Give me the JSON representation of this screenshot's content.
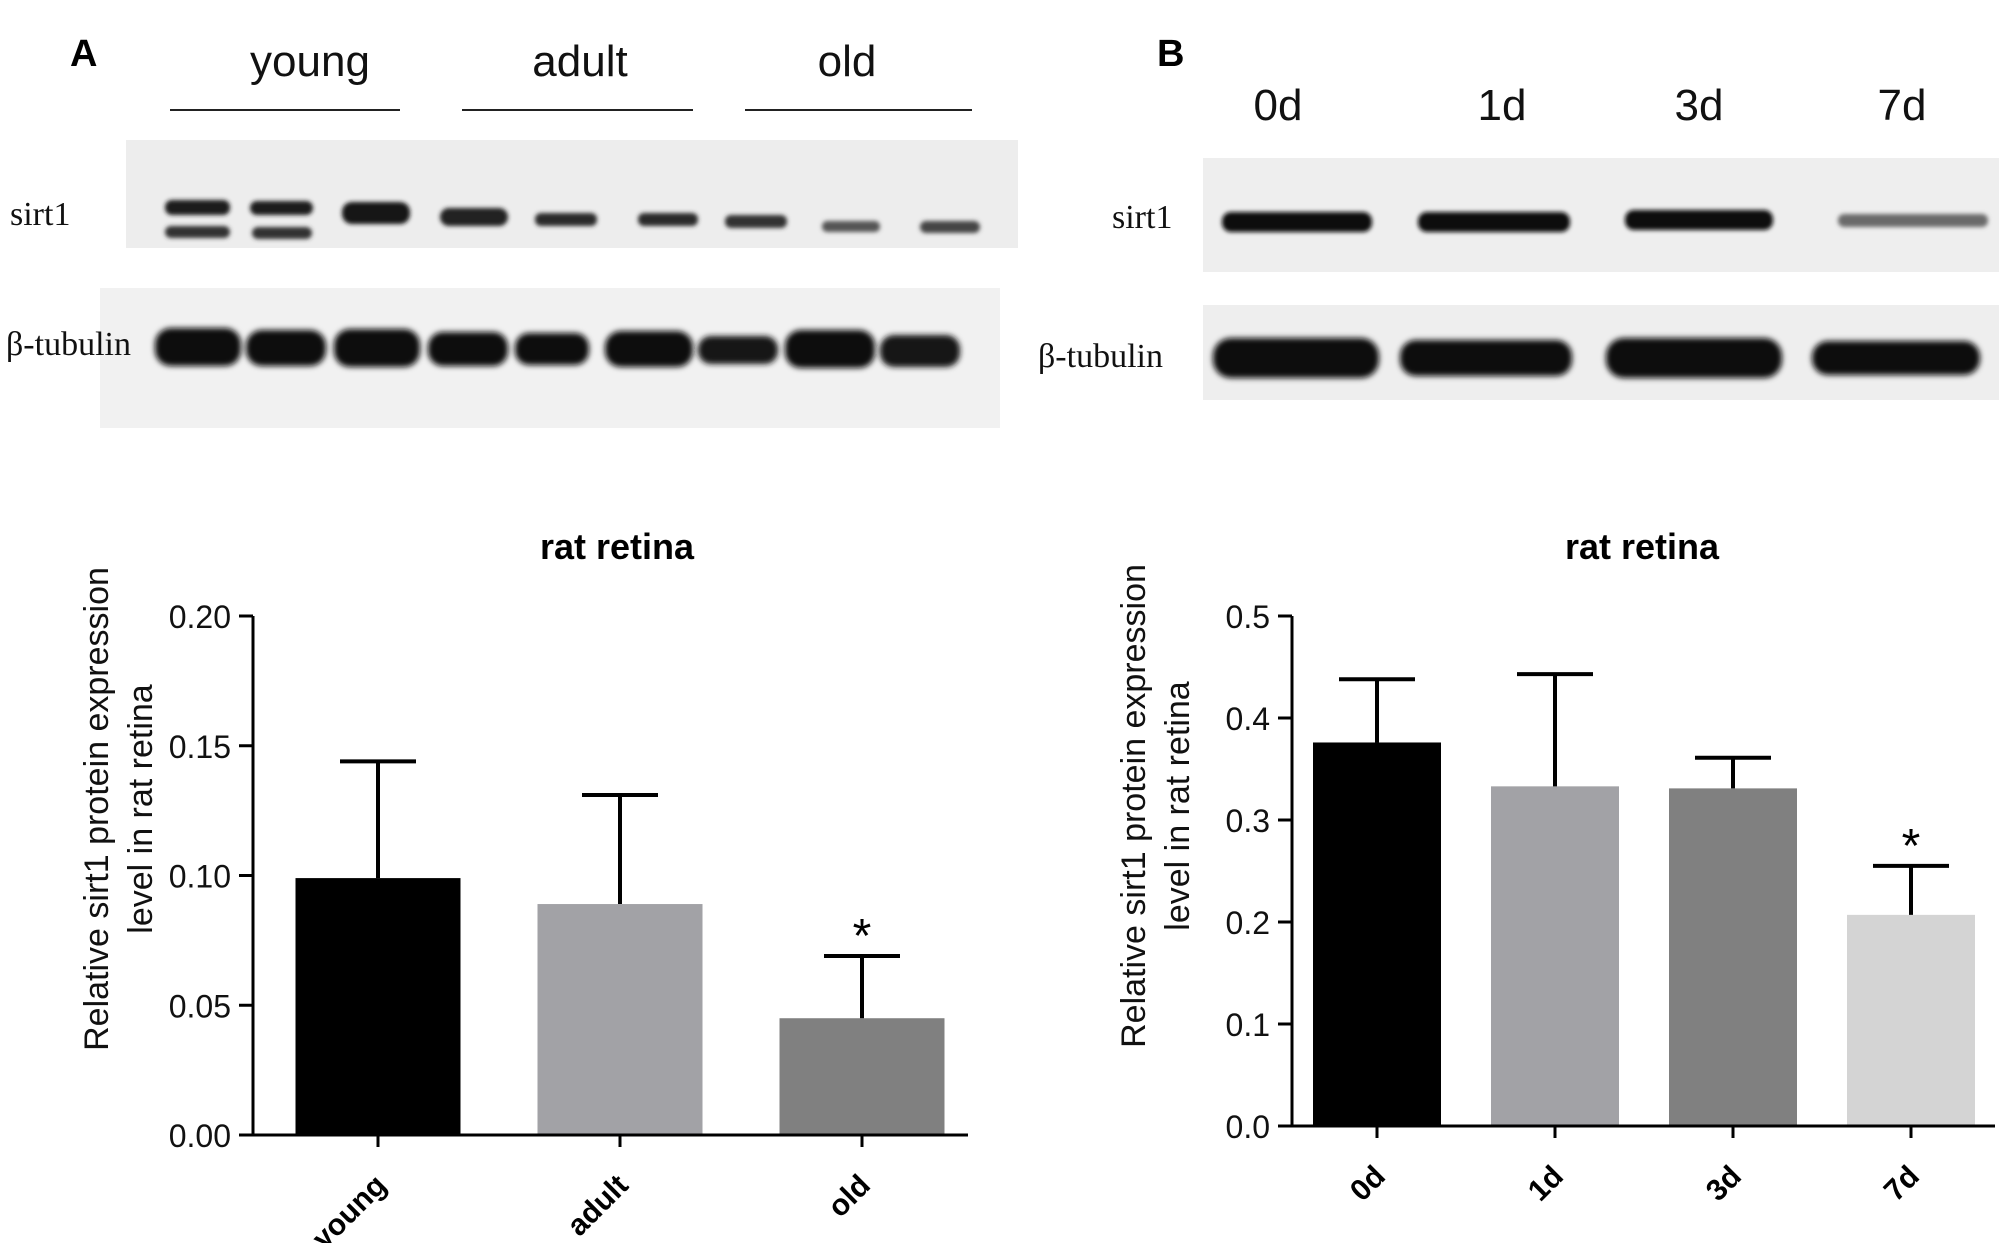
{
  "panels": [
    {
      "letter": "A",
      "blot": {
        "groups": [
          "young",
          "adult",
          "old"
        ],
        "rows": [
          "sirt1",
          "β-tubulin"
        ]
      }
    },
    {
      "letter": "B",
      "blot": {
        "lanes": [
          "0d",
          "1d",
          "3d",
          "7d"
        ],
        "rows": [
          "sirt1",
          "β-tubulin"
        ]
      }
    }
  ],
  "chart_data": [
    {
      "type": "bar",
      "title": "rat retina",
      "xlabel": "",
      "ylabel": "Relative sirt1 protein expression level in rat retina",
      "ylabel_lines": [
        "Relative sirt1 protein expression",
        "level in rat retina"
      ],
      "categories": [
        "young",
        "adult",
        "old"
      ],
      "values": [
        0.099,
        0.089,
        0.045
      ],
      "error_upper": [
        0.144,
        0.131,
        0.069
      ],
      "significance": [
        "",
        "",
        "*"
      ],
      "ylim": [
        0,
        0.2
      ],
      "yticks": [
        "0.00",
        "0.05",
        "0.10",
        "0.15",
        "0.20"
      ],
      "bar_colors": [
        "#000000",
        "#a2a2a6",
        "#808080"
      ],
      "grid": false
    },
    {
      "type": "bar",
      "title": "rat retina",
      "xlabel": "",
      "ylabel": "Relative sirt1 protein expression level in rat retina",
      "ylabel_lines": [
        "Relative sirt1 protein expression",
        "level in rat retina"
      ],
      "categories": [
        "0d",
        "1d",
        "3d",
        "7d"
      ],
      "values": [
        0.376,
        0.333,
        0.331,
        0.207
      ],
      "error_upper": [
        0.438,
        0.443,
        0.361,
        0.255
      ],
      "significance": [
        "",
        "",
        "",
        "*"
      ],
      "ylim": [
        0,
        0.5
      ],
      "yticks": [
        "0.0",
        "0.1",
        "0.2",
        "0.3",
        "0.4",
        "0.5"
      ],
      "bar_colors": [
        "#000000",
        "#a2a2a6",
        "#808080",
        "#d4d4d4"
      ],
      "grid": false
    }
  ]
}
